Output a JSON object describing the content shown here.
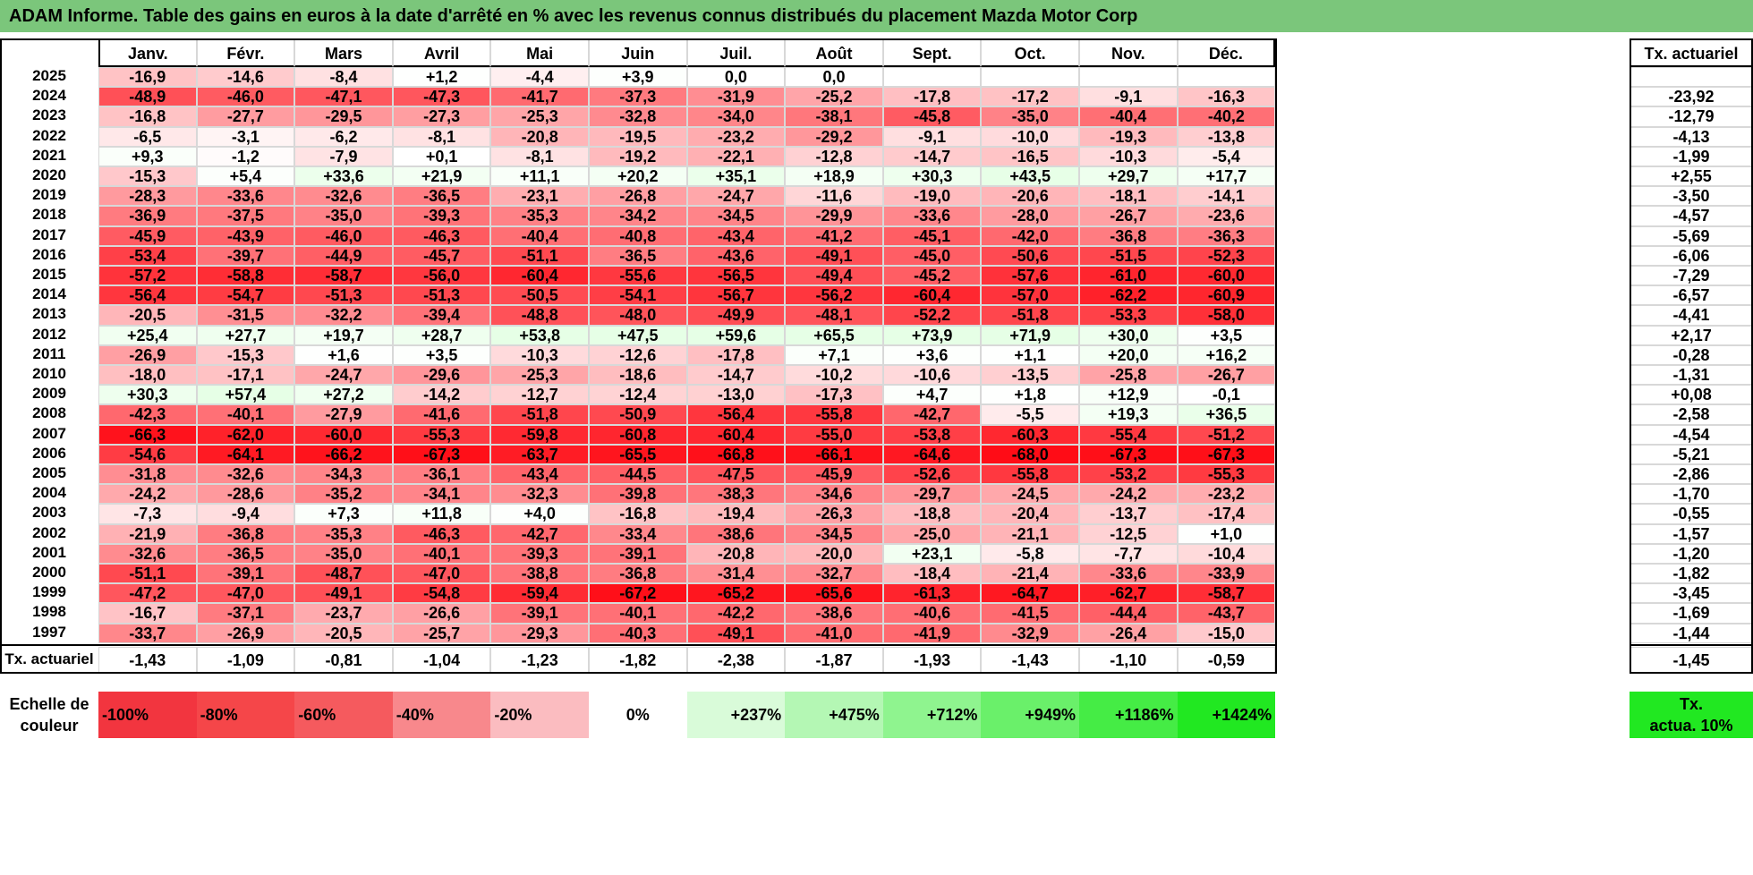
{
  "title": "ADAM Informe. Table des gains en euros à la date d'arrêté en % avec les revenus connus distribués du placement Mazda Motor Corp",
  "columns": [
    "Janv.",
    "Févr.",
    "Mars",
    "Avril",
    "Mai",
    "Juin",
    "Juil.",
    "Août",
    "Sept.",
    "Oct.",
    "Nov.",
    "Déc."
  ],
  "rate_header": "Tx. actuariel",
  "rows": [
    {
      "year": "2025",
      "values": [
        "-16,9",
        "-14,6",
        "-8,4",
        "+1,2",
        "-4,4",
        "+3,9",
        "0,0",
        "0,0",
        "",
        "",
        "",
        ""
      ],
      "rate": ""
    },
    {
      "year": "2024",
      "values": [
        "-48,9",
        "-46,0",
        "-47,1",
        "-47,3",
        "-41,7",
        "-37,3",
        "-31,9",
        "-25,2",
        "-17,8",
        "-17,2",
        "-9,1",
        "-16,3"
      ],
      "rate": "-23,92"
    },
    {
      "year": "2023",
      "values": [
        "-16,8",
        "-27,7",
        "-29,5",
        "-27,3",
        "-25,3",
        "-32,8",
        "-34,0",
        "-38,1",
        "-45,8",
        "-35,0",
        "-40,4",
        "-40,2"
      ],
      "rate": "-12,79"
    },
    {
      "year": "2022",
      "values": [
        "-6,5",
        "-3,1",
        "-6,2",
        "-8,1",
        "-20,8",
        "-19,5",
        "-23,2",
        "-29,2",
        "-9,1",
        "-10,0",
        "-19,3",
        "-13,8"
      ],
      "rate": "-4,13"
    },
    {
      "year": "2021",
      "values": [
        "+9,3",
        "-1,2",
        "-7,9",
        "+0,1",
        "-8,1",
        "-19,2",
        "-22,1",
        "-12,8",
        "-14,7",
        "-16,5",
        "-10,3",
        "-5,4"
      ],
      "rate": "-1,99"
    },
    {
      "year": "2020",
      "values": [
        "-15,3",
        "+5,4",
        "+33,6",
        "+21,9",
        "+11,1",
        "+20,2",
        "+35,1",
        "+18,9",
        "+30,3",
        "+43,5",
        "+29,7",
        "+17,7"
      ],
      "rate": "+2,55"
    },
    {
      "year": "2019",
      "values": [
        "-28,3",
        "-33,6",
        "-32,6",
        "-36,5",
        "-23,1",
        "-26,8",
        "-24,7",
        "-11,6",
        "-19,0",
        "-20,6",
        "-18,1",
        "-14,1"
      ],
      "rate": "-3,50"
    },
    {
      "year": "2018",
      "values": [
        "-36,9",
        "-37,5",
        "-35,0",
        "-39,3",
        "-35,3",
        "-34,2",
        "-34,5",
        "-29,9",
        "-33,6",
        "-28,0",
        "-26,7",
        "-23,6"
      ],
      "rate": "-4,57"
    },
    {
      "year": "2017",
      "values": [
        "-45,9",
        "-43,9",
        "-46,0",
        "-46,3",
        "-40,4",
        "-40,8",
        "-43,4",
        "-41,2",
        "-45,1",
        "-42,0",
        "-36,8",
        "-36,3"
      ],
      "rate": "-5,69"
    },
    {
      "year": "2016",
      "values": [
        "-53,4",
        "-39,7",
        "-44,9",
        "-45,7",
        "-51,1",
        "-36,5",
        "-43,6",
        "-49,1",
        "-45,0",
        "-50,6",
        "-51,5",
        "-52,3"
      ],
      "rate": "-6,06"
    },
    {
      "year": "2015",
      "values": [
        "-57,2",
        "-58,8",
        "-58,7",
        "-56,0",
        "-60,4",
        "-55,6",
        "-56,5",
        "-49,4",
        "-45,2",
        "-57,6",
        "-61,0",
        "-60,0"
      ],
      "rate": "-7,29"
    },
    {
      "year": "2014",
      "values": [
        "-56,4",
        "-54,7",
        "-51,3",
        "-51,3",
        "-50,5",
        "-54,1",
        "-56,7",
        "-56,2",
        "-60,4",
        "-57,0",
        "-62,2",
        "-60,9"
      ],
      "rate": "-6,57"
    },
    {
      "year": "2013",
      "values": [
        "-20,5",
        "-31,5",
        "-32,2",
        "-39,4",
        "-48,8",
        "-48,0",
        "-49,9",
        "-48,1",
        "-52,2",
        "-51,8",
        "-53,3",
        "-58,0"
      ],
      "rate": "-4,41"
    },
    {
      "year": "2012",
      "values": [
        "+25,4",
        "+27,7",
        "+19,7",
        "+28,7",
        "+53,8",
        "+47,5",
        "+59,6",
        "+65,5",
        "+73,9",
        "+71,9",
        "+30,0",
        "+3,5"
      ],
      "rate": "+2,17"
    },
    {
      "year": "2011",
      "values": [
        "-26,9",
        "-15,3",
        "+1,6",
        "+3,5",
        "-10,3",
        "-12,6",
        "-17,8",
        "+7,1",
        "+3,6",
        "+1,1",
        "+20,0",
        "+16,2"
      ],
      "rate": "-0,28"
    },
    {
      "year": "2010",
      "values": [
        "-18,0",
        "-17,1",
        "-24,7",
        "-29,6",
        "-25,3",
        "-18,6",
        "-14,7",
        "-10,2",
        "-10,6",
        "-13,5",
        "-25,8",
        "-26,7"
      ],
      "rate": "-1,31"
    },
    {
      "year": "2009",
      "values": [
        "+30,3",
        "+57,4",
        "+27,2",
        "-14,2",
        "-12,7",
        "-12,4",
        "-13,0",
        "-17,3",
        "+4,7",
        "+1,8",
        "+12,9",
        "-0,1"
      ],
      "rate": "+0,08"
    },
    {
      "year": "2008",
      "values": [
        "-42,3",
        "-40,1",
        "-27,9",
        "-41,6",
        "-51,8",
        "-50,9",
        "-56,4",
        "-55,8",
        "-42,7",
        "-5,5",
        "+19,3",
        "+36,5"
      ],
      "rate": "-2,58"
    },
    {
      "year": "2007",
      "values": [
        "-66,3",
        "-62,0",
        "-60,0",
        "-55,3",
        "-59,8",
        "-60,8",
        "-60,4",
        "-55,0",
        "-53,8",
        "-60,3",
        "-55,4",
        "-51,2"
      ],
      "rate": "-4,54"
    },
    {
      "year": "2006",
      "values": [
        "-54,6",
        "-64,1",
        "-66,2",
        "-67,3",
        "-63,7",
        "-65,5",
        "-66,8",
        "-66,1",
        "-64,6",
        "-68,0",
        "-67,3",
        "-67,3"
      ],
      "rate": "-5,21"
    },
    {
      "year": "2005",
      "values": [
        "-31,8",
        "-32,6",
        "-34,3",
        "-36,1",
        "-43,4",
        "-44,5",
        "-47,5",
        "-45,9",
        "-52,6",
        "-55,8",
        "-53,2",
        "-55,3"
      ],
      "rate": "-2,86"
    },
    {
      "year": "2004",
      "values": [
        "-24,2",
        "-28,6",
        "-35,2",
        "-34,1",
        "-32,3",
        "-39,8",
        "-38,3",
        "-34,6",
        "-29,7",
        "-24,5",
        "-24,2",
        "-23,2"
      ],
      "rate": "-1,70"
    },
    {
      "year": "2003",
      "values": [
        "-7,3",
        "-9,4",
        "+7,3",
        "+11,8",
        "+4,0",
        "-16,8",
        "-19,4",
        "-26,3",
        "-18,8",
        "-20,4",
        "-13,7",
        "-17,4"
      ],
      "rate": "-0,55"
    },
    {
      "year": "2002",
      "values": [
        "-21,9",
        "-36,8",
        "-35,3",
        "-46,3",
        "-42,7",
        "-33,4",
        "-38,6",
        "-34,5",
        "-25,0",
        "-21,1",
        "-12,5",
        "+1,0"
      ],
      "rate": "-1,57"
    },
    {
      "year": "2001",
      "values": [
        "-32,6",
        "-36,5",
        "-35,0",
        "-40,1",
        "-39,3",
        "-39,1",
        "-20,8",
        "-20,0",
        "+23,1",
        "-5,8",
        "-7,7",
        "-10,4"
      ],
      "rate": "-1,20"
    },
    {
      "year": "2000",
      "values": [
        "-51,1",
        "-39,1",
        "-48,7",
        "-47,0",
        "-38,8",
        "-36,8",
        "-31,4",
        "-32,7",
        "-18,4",
        "-21,4",
        "-33,6",
        "-33,9"
      ],
      "rate": "-1,82"
    },
    {
      "year": "1999",
      "values": [
        "-47,2",
        "-47,0",
        "-49,1",
        "-54,8",
        "-59,4",
        "-67,2",
        "-65,2",
        "-65,6",
        "-61,3",
        "-64,7",
        "-62,7",
        "-58,7"
      ],
      "rate": "-3,45"
    },
    {
      "year": "1998",
      "values": [
        "-16,7",
        "-37,1",
        "-23,7",
        "-26,6",
        "-39,1",
        "-40,1",
        "-42,2",
        "-38,6",
        "-40,6",
        "-41,5",
        "-44,4",
        "-43,7"
      ],
      "rate": "-1,69"
    },
    {
      "year": "1997",
      "values": [
        "-33,7",
        "-26,9",
        "-20,5",
        "-25,7",
        "-29,3",
        "-40,3",
        "-49,1",
        "-41,0",
        "-41,9",
        "-32,9",
        "-26,4",
        "-15,0"
      ],
      "rate": "-1,44"
    }
  ],
  "footer": {
    "label": "Tx. actuariel",
    "values": [
      "-1,43",
      "-1,09",
      "-0,81",
      "-1,04",
      "-1,23",
      "-1,82",
      "-2,38",
      "-1,87",
      "-1,93",
      "-1,43",
      "-1,10",
      "-0,59"
    ],
    "rate": "-1,45"
  },
  "scale": {
    "label_line1": "Echelle de",
    "label_line2": "couleur",
    "cells": [
      {
        "text": "-100%",
        "color": "#f2353f",
        "align": "left"
      },
      {
        "text": "-80%",
        "color": "#f54649",
        "align": "left"
      },
      {
        "text": "-60%",
        "color": "#f55a5e",
        "align": "left"
      },
      {
        "text": "-40%",
        "color": "#f8888c",
        "align": "left"
      },
      {
        "text": "-20%",
        "color": "#fbbcc0",
        "align": "left"
      },
      {
        "text": "0%",
        "color": "#ffffff",
        "align": "center"
      },
      {
        "text": "+237%",
        "color": "#d9fbd9",
        "align": "right"
      },
      {
        "text": "+475%",
        "color": "#b4f7b4",
        "align": "right"
      },
      {
        "text": "+712%",
        "color": "#8ff48f",
        "align": "right"
      },
      {
        "text": "+949%",
        "color": "#6af06a",
        "align": "right"
      },
      {
        "text": "+1186%",
        "color": "#45ec45",
        "align": "right"
      },
      {
        "text": "+1424%",
        "color": "#21e821",
        "align": "right"
      }
    ],
    "legend_line1": "Tx.",
    "legend_line2": "actua. 10%",
    "legend_color": "#21e821"
  }
}
